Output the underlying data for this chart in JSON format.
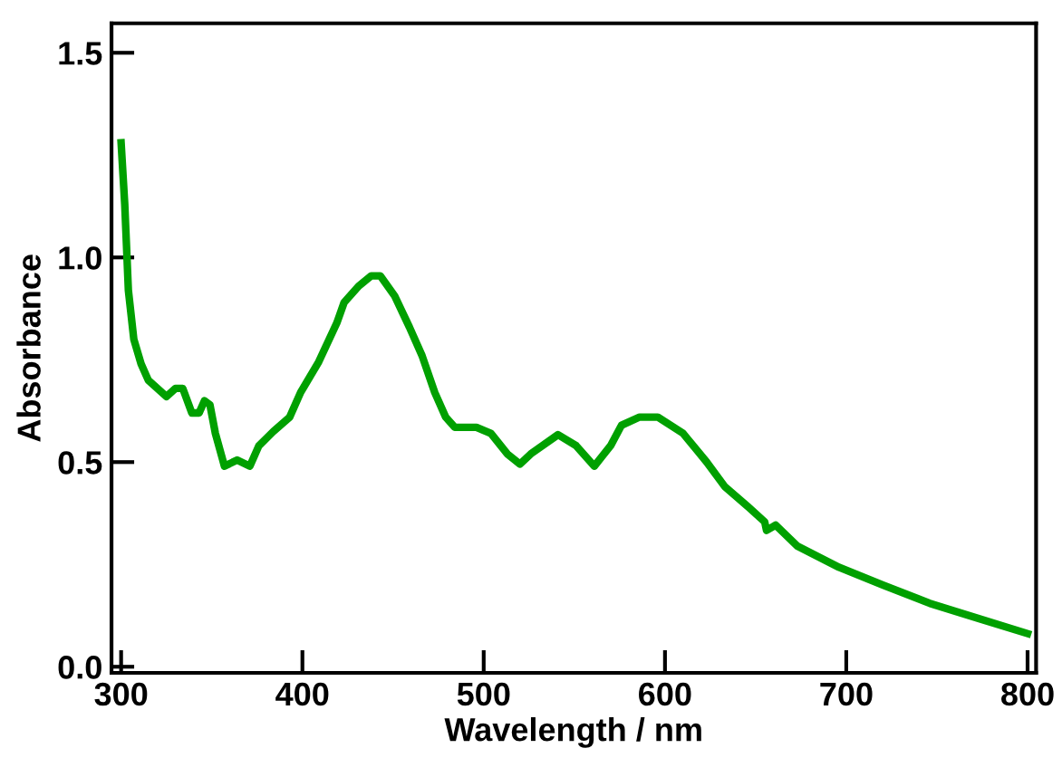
{
  "chart_data": {
    "type": "line",
    "xlabel": "Wavelength / nm",
    "ylabel": "Absorbance",
    "xlim": [
      294.7,
      804.7
    ],
    "ylim": [
      -0.015,
      1.572
    ],
    "xticks": [
      300,
      400,
      500,
      600,
      700,
      800
    ],
    "yticks": [
      {
        "value": 0,
        "label": "0.0"
      },
      {
        "value": 0.5,
        "label": "0.5"
      },
      {
        "value": 1,
        "label": "1.0"
      },
      {
        "value": 1.5,
        "label": "1.5"
      }
    ],
    "grid": false,
    "legend": false,
    "marker": "none",
    "line_style": "solid",
    "series": [
      {
        "color": "#00a000",
        "x": [
          300,
          302,
          304,
          307,
          311,
          315,
          325,
          330,
          334,
          339,
          343,
          346,
          349,
          352,
          357,
          364,
          371,
          376,
          384,
          393,
          399,
          409,
          419,
          423,
          431,
          438,
          443,
          451,
          459,
          466,
          473,
          479,
          484,
          496,
          504,
          513,
          520,
          526,
          541,
          551,
          561,
          570,
          576,
          586,
          596,
          610,
          623,
          633,
          646,
          655,
          656,
          661,
          673,
          696,
          720,
          746,
          773,
          800
        ],
        "values": [
          1.28,
          1.13,
          0.92,
          0.8,
          0.74,
          0.7,
          0.66,
          0.68,
          0.68,
          0.62,
          0.62,
          0.65,
          0.64,
          0.57,
          0.49,
          0.505,
          0.49,
          0.54,
          0.575,
          0.61,
          0.67,
          0.745,
          0.84,
          0.89,
          0.93,
          0.955,
          0.955,
          0.905,
          0.83,
          0.76,
          0.67,
          0.61,
          0.585,
          0.585,
          0.57,
          0.52,
          0.495,
          0.52,
          0.567,
          0.54,
          0.49,
          0.54,
          0.59,
          0.61,
          0.61,
          0.57,
          0.5,
          0.44,
          0.39,
          0.354,
          0.333,
          0.346,
          0.295,
          0.243,
          0.2,
          0.155,
          0.118,
          0.081
        ]
      }
    ]
  }
}
